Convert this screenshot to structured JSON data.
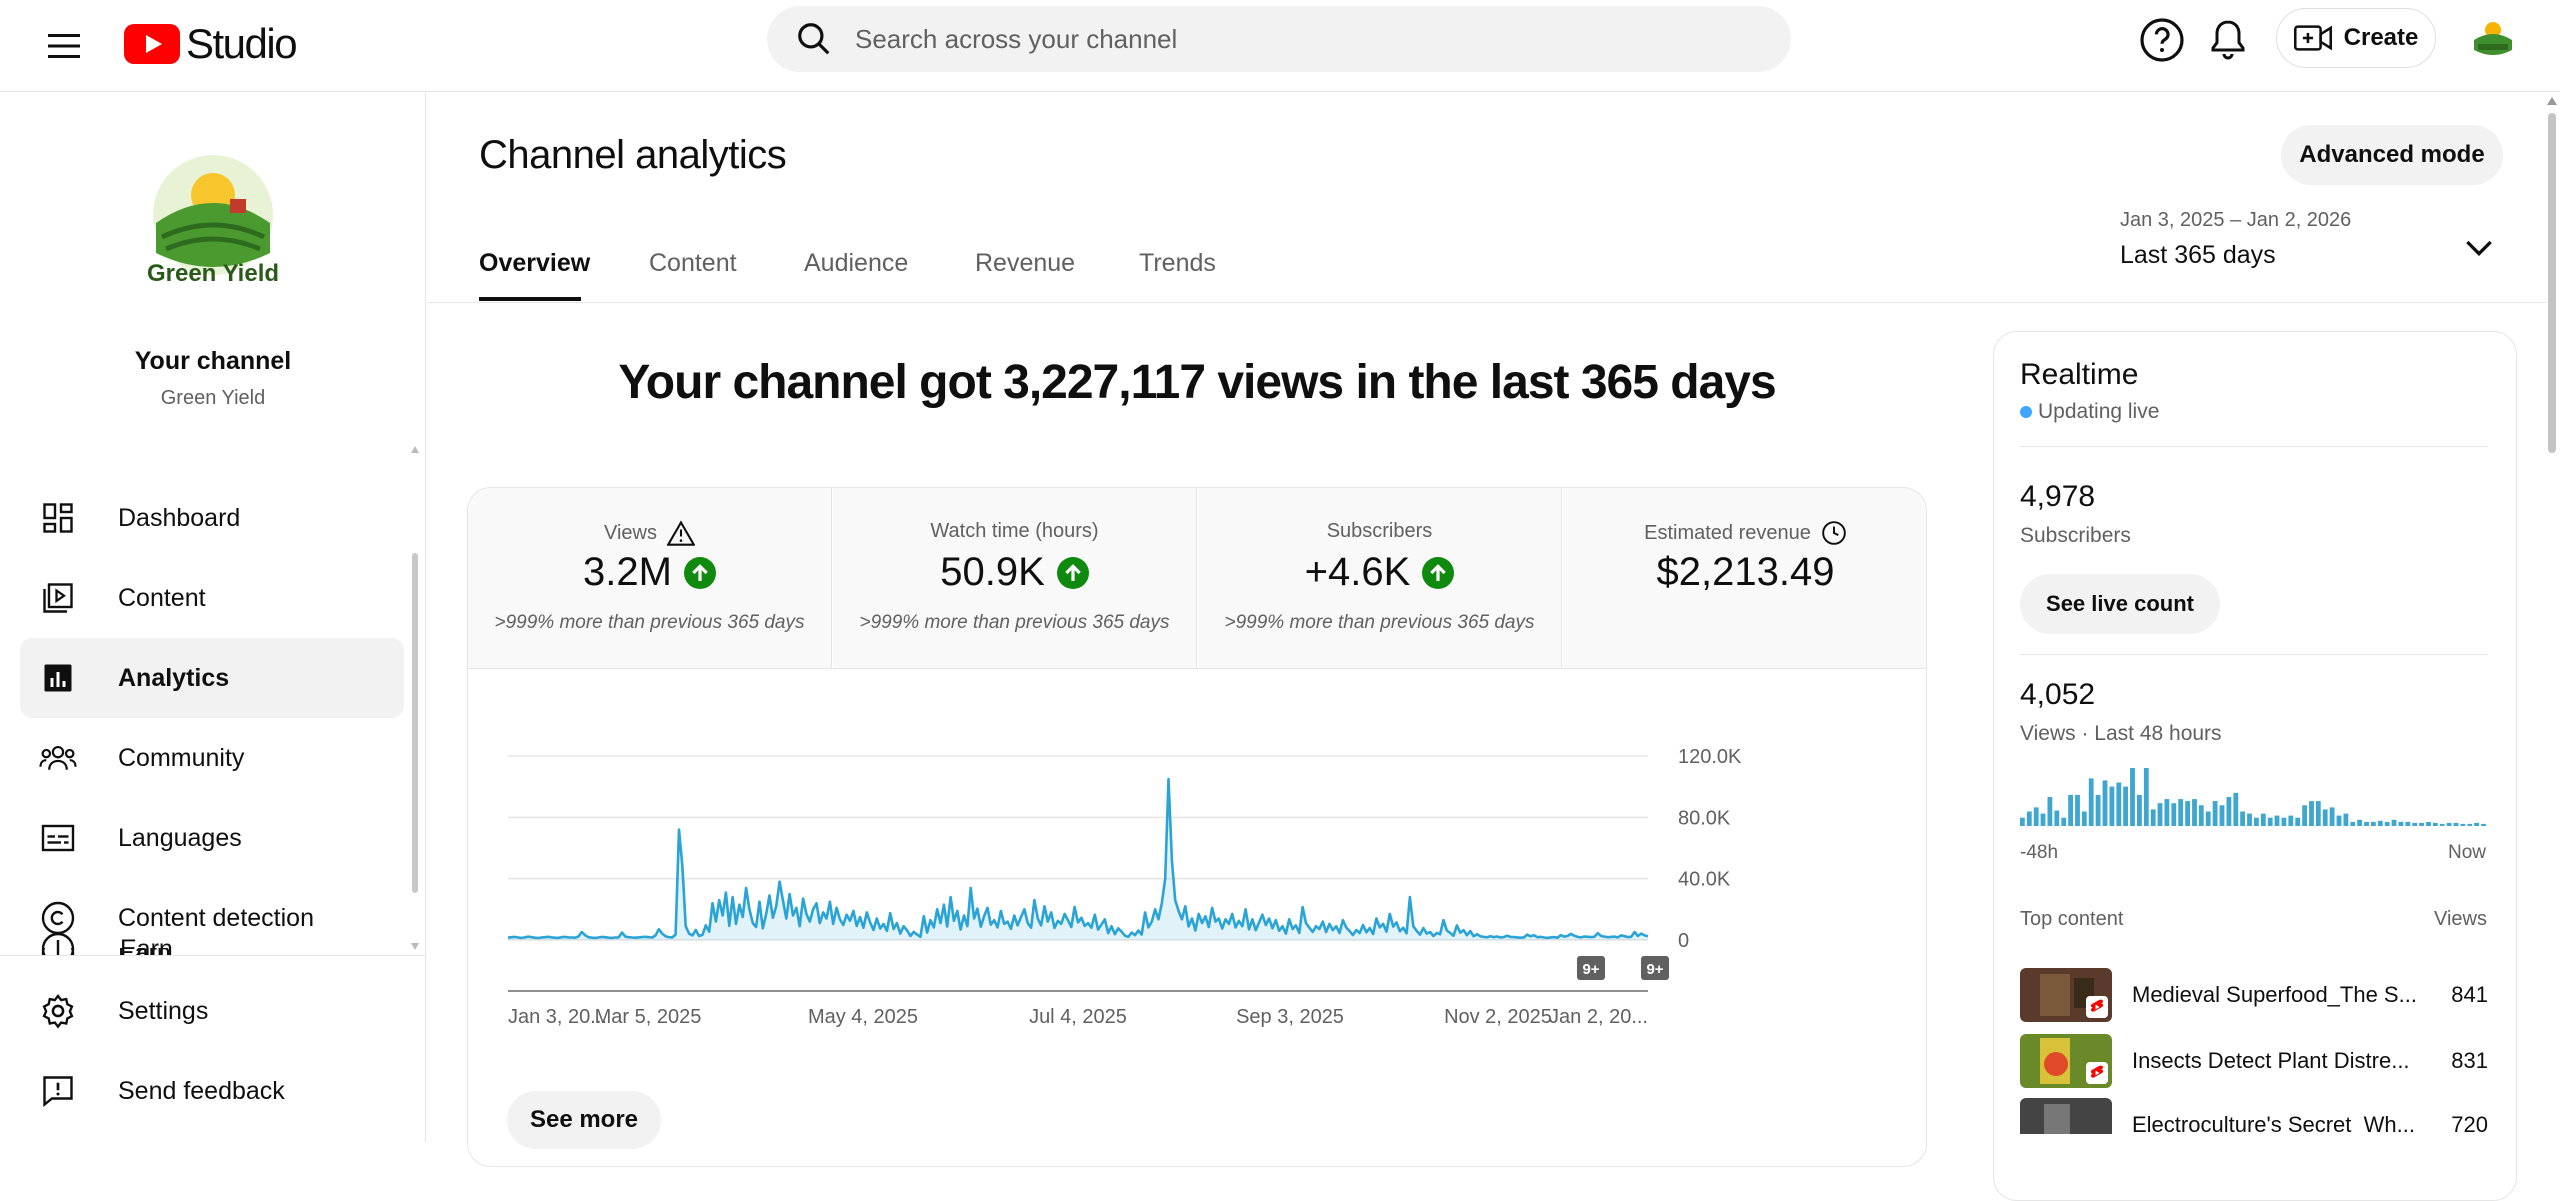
{
  "header": {
    "logo_text": "Studio",
    "search_placeholder": "Search across your channel",
    "create_label": "Create"
  },
  "sidebar": {
    "your_channel": "Your channel",
    "channel_name": "Green Yield",
    "logo_text": "Green Yield",
    "items": [
      {
        "label": "Dashboard",
        "icon": "dashboard-icon"
      },
      {
        "label": "Content",
        "icon": "content-icon"
      },
      {
        "label": "Analytics",
        "icon": "analytics-icon",
        "active": true
      },
      {
        "label": "Community",
        "icon": "community-icon"
      },
      {
        "label": "Languages",
        "icon": "subtitles-icon"
      },
      {
        "label": "Content detection",
        "icon": "copyright-icon"
      },
      {
        "label": "Earn",
        "icon": "earn-icon"
      }
    ],
    "settings_label": "Settings",
    "feedback_label": "Send feedback"
  },
  "main": {
    "title": "Channel analytics",
    "advanced_mode": "Advanced mode",
    "tabs": [
      "Overview",
      "Content",
      "Audience",
      "Revenue",
      "Trends"
    ],
    "active_tab": "Overview",
    "date_range": "Jan 3, 2025 – Jan 2, 2026",
    "date_label": "Last 365 days",
    "headline": "Your channel got 3,227,117 views in the last 365 days",
    "metrics": [
      {
        "label": "Views",
        "value": "3.2M",
        "sub": ">999% more than previous 365 days",
        "trend": "up",
        "label_icon": "warning-icon"
      },
      {
        "label": "Watch time (hours)",
        "value": "50.9K",
        "sub": ">999% more than previous 365 days",
        "trend": "up"
      },
      {
        "label": "Subscribers",
        "value": "+4.6K",
        "sub": ">999% more than previous 365 days",
        "trend": "up"
      },
      {
        "label": "Estimated revenue",
        "value": "$2,213.49",
        "sub": "",
        "label_icon": "clock-icon"
      }
    ],
    "see_more": "See more",
    "badge": "9+"
  },
  "chart_data": {
    "type": "line",
    "title": "",
    "x_ticks": [
      "Jan 3, 20...",
      "Mar 5, 2025",
      "May 4, 2025",
      "Jul 4, 2025",
      "Sep 3, 2025",
      "Nov 2, 2025",
      "Jan 2, 20..."
    ],
    "y_ticks": [
      "0",
      "40.0K",
      "80.0K",
      "120.0K"
    ],
    "ylim": [
      0,
      120000
    ],
    "color": "#2aa3d6",
    "series": [
      {
        "values": [
          1500,
          1800,
          2000,
          1600,
          1400,
          1700,
          2200,
          1900,
          1500,
          1300,
          1600,
          1800,
          2100,
          1700,
          1500,
          1400,
          1800,
          2000,
          1700,
          1600,
          1500,
          2300,
          5200,
          3100,
          1800,
          1500,
          1400,
          1600,
          2000,
          1800,
          1500,
          1400,
          1600,
          1700,
          4800,
          2200,
          1800,
          1600,
          1500,
          1700,
          1900,
          2100,
          1800,
          1600,
          3000,
          7000,
          4200,
          2400,
          1800,
          1700,
          3500,
          72000,
          48000,
          9000,
          4200,
          3000,
          6500,
          2600,
          3400,
          9500,
          5400,
          24000,
          12000,
          26000,
          16000,
          31000,
          9200,
          28000,
          10500,
          23000,
          15000,
          34000,
          20000,
          11000,
          8500,
          25000,
          7600,
          17000,
          29000,
          14500,
          22000,
          38000,
          26000,
          14000,
          30000,
          16000,
          21000,
          9000,
          27000,
          17000,
          12000,
          20000,
          24000,
          11000,
          18000,
          14000,
          25000,
          10500,
          21000,
          13500,
          9800,
          16500,
          12500,
          19000,
          9200,
          15000,
          8000,
          18000,
          11500,
          6500,
          14000,
          7500,
          10500,
          6000,
          17500,
          7200,
          11000,
          4200,
          9000,
          6400,
          2600,
          5300,
          3500,
          2100,
          15500,
          4800,
          13000,
          8200,
          20000,
          11000,
          23000,
          8800,
          28000,
          12500,
          19000,
          6800,
          16000,
          9000,
          34000,
          14000,
          20500,
          8600,
          15500,
          21000,
          10000,
          13000,
          8200,
          19000,
          10500,
          12000,
          7300,
          16000,
          9500,
          15000,
          20000,
          11000,
          8000,
          26000,
          14000,
          9500,
          22000,
          12000,
          18000,
          7800,
          12500,
          10500,
          17000,
          13000,
          8500,
          21500,
          11500,
          14500,
          9200,
          11000,
          8000,
          16500,
          6800,
          10200,
          13500,
          4500,
          9000,
          3800,
          7600,
          5400,
          2800,
          2100,
          4800,
          3200,
          6200,
          3600,
          18000,
          8200,
          12000,
          20000,
          13500,
          24000,
          40000,
          105000,
          52000,
          26000,
          19000,
          13500,
          22000,
          8800,
          14000,
          6200,
          17000,
          11000,
          15500,
          8500,
          21000,
          12000,
          14000,
          7500,
          13500,
          10500,
          17000,
          8200,
          12500,
          9000,
          20000,
          7000,
          13500,
          6400,
          11500,
          16500,
          9800,
          14000,
          7600,
          13000,
          6000,
          9000,
          4200,
          13500,
          7200,
          9500,
          4600,
          21500,
          11000,
          8000,
          5200,
          9000,
          7200,
          12000,
          5200,
          10500,
          6400,
          9000,
          4600,
          13000,
          8200,
          5800,
          3200,
          6500,
          4500,
          9800,
          5000,
          7800,
          3900,
          14000,
          8200,
          10500,
          5400,
          17000,
          8800,
          11500,
          5700,
          8000,
          4400,
          28000,
          9000,
          6000,
          3500,
          7800,
          4200,
          5200,
          2600,
          4600,
          3700,
          13000,
          6200,
          4600,
          2800,
          9500,
          4800,
          6400,
          3100,
          5800,
          2500,
          3800,
          2400,
          2000,
          1800,
          2500,
          1900,
          2300,
          1600,
          1900,
          2800,
          2000,
          1900,
          1700,
          1500,
          1700,
          3500,
          2400,
          3100,
          1800,
          2000,
          1600,
          1400,
          1700,
          1900,
          1500,
          3100,
          2200,
          2600,
          4000,
          2800,
          2000,
          1700,
          2300,
          2100,
          1900,
          2100,
          4500,
          2600,
          2200,
          1800,
          2000,
          2200,
          1700,
          3000,
          2500,
          1900,
          2100,
          5200,
          2600,
          4200,
          3000,
          2400
        ]
      }
    ]
  },
  "realtime": {
    "title": "Realtime",
    "live_label": "Updating live",
    "subscribers_value": "4,978",
    "subscribers_label": "Subscribers",
    "live_count_btn": "See live count",
    "views_value": "4,052",
    "views_label": "Views · Last 48 hours",
    "axis_start": "-48h",
    "axis_end": "Now",
    "top_content_label": "Top content",
    "views_col": "Views",
    "bars": [
      8,
      14,
      18,
      12,
      28,
      15,
      8,
      30,
      30,
      14,
      46,
      30,
      44,
      38,
      42,
      38,
      56,
      30,
      56,
      16,
      22,
      26,
      22,
      26,
      24,
      26,
      20,
      14,
      24,
      20,
      28,
      32,
      14,
      12,
      8,
      12,
      8,
      10,
      8,
      10,
      8,
      20,
      24,
      24,
      16,
      18,
      10,
      12,
      4,
      6,
      4,
      4,
      5,
      4,
      6,
      4,
      4,
      3,
      3,
      4,
      3,
      2,
      3,
      3,
      2,
      2,
      3,
      2
    ],
    "top_content": [
      {
        "title": "Medieval Superfood_The S...",
        "views": "841",
        "thumb": "#5a3a2a"
      },
      {
        "title": "Insects Detect Plant Distre...",
        "views": "831",
        "thumb": "#6a8a2a"
      },
      {
        "title": "Electroculture's Secret_Wh...",
        "views": "720",
        "thumb": "#444444"
      }
    ]
  }
}
